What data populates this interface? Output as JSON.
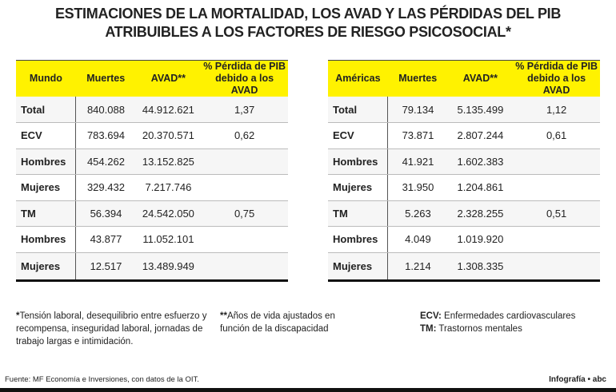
{
  "title": {
    "line1": "ESTIMACIONES DE LA MORTALIDAD, LOS AVAD Y LAS PÉRDIDAS DEL PIB",
    "line2": "ATRIBUIBLES A LOS FACTORES DE RIESGO PSICOSOCIAL*"
  },
  "colors": {
    "header": "#fff200",
    "text": "#222222"
  },
  "left": {
    "headers": [
      "Mundo",
      "Muertes",
      "AVAD**",
      "% Pérdida de PIB debido a los AVAD"
    ],
    "rows": [
      [
        "Total",
        "840.088",
        "44.912.621",
        "1,37"
      ],
      [
        "ECV",
        "783.694",
        "20.370.571",
        "0,62"
      ],
      [
        "Hombres",
        "454.262",
        "13.152.825",
        ""
      ],
      [
        "Mujeres",
        "329.432",
        "7.217.746",
        ""
      ],
      [
        "TM",
        "56.394",
        "24.542.050",
        "0,75"
      ],
      [
        "Hombres",
        "43.877",
        "11.052.101",
        ""
      ],
      [
        "Mujeres",
        "12.517",
        "13.489.949",
        ""
      ]
    ]
  },
  "right": {
    "headers": [
      "Américas",
      "Muertes",
      "AVAD**",
      "% Pérdida de PIB debido a los AVAD"
    ],
    "rows": [
      [
        "Total",
        "79.134",
        "5.135.499",
        "1,12"
      ],
      [
        "ECV",
        "73.871",
        "2.807.244",
        "0,61"
      ],
      [
        "Hombres",
        "41.921",
        "1.602.383",
        ""
      ],
      [
        "Mujeres",
        "31.950",
        "1.204.861",
        ""
      ],
      [
        "TM",
        "5.263",
        "2.328.255",
        "0,51"
      ],
      [
        "Hombres",
        "4.049",
        "1.019.920",
        ""
      ],
      [
        "Mujeres",
        "1.214",
        "1.308.335",
        ""
      ]
    ]
  },
  "notes": {
    "n1_mark": "*",
    "n1": "Tensión laboral, desequilibrio entre esfuerzo y recompensa, inseguridad laboral, jornadas de trabajo largas e intimidación.",
    "n2_mark": "**",
    "n2": "Años de vida ajustados en función de la discapacidad",
    "ecv_label": "ECV:",
    "ecv": " Enfermedades cardiovasculares",
    "tm_label": "TM:",
    "tm": " Trastornos mentales"
  },
  "source": "Fuente: MF Economía e Inversiones, con datos de la OIT.",
  "credit": "Infografía • abc"
}
